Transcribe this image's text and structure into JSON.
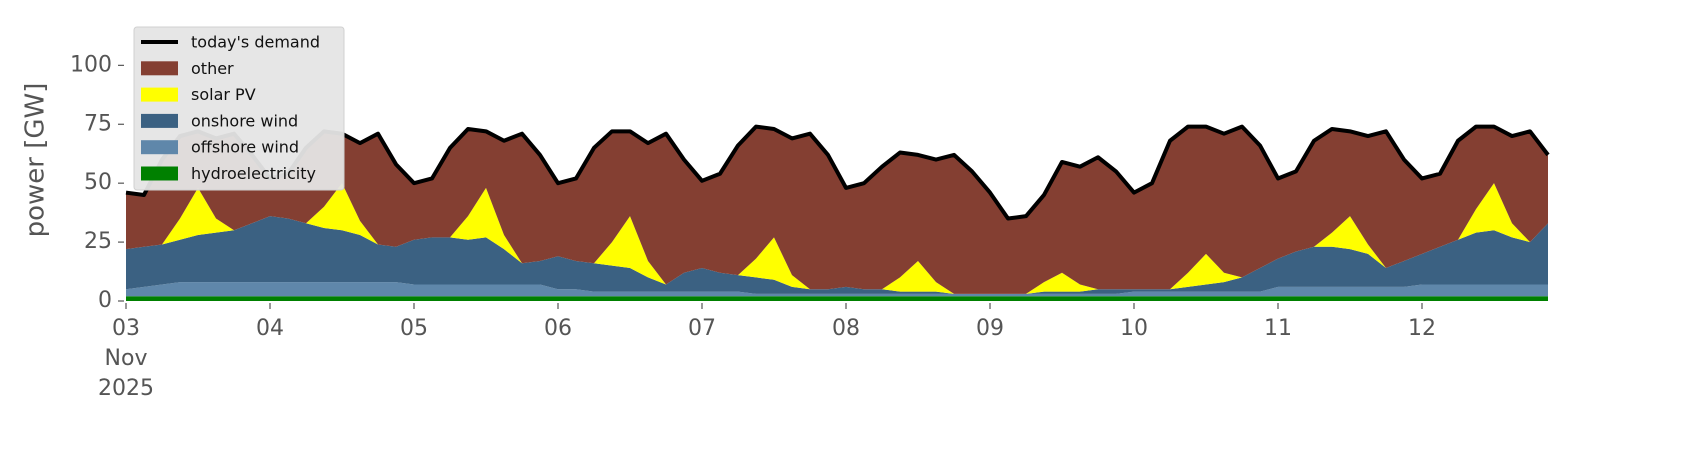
{
  "chart_data": {
    "type": "stacked_area",
    "y_label": "power [GW]",
    "x": [
      "2025-11-03T00:00",
      "2025-11-03T03:00",
      "2025-11-03T06:00",
      "2025-11-03T09:00",
      "2025-11-03T12:00",
      "2025-11-03T15:00",
      "2025-11-03T18:00",
      "2025-11-03T21:00",
      "2025-11-04T00:00",
      "2025-11-04T03:00",
      "2025-11-04T06:00",
      "2025-11-04T09:00",
      "2025-11-04T12:00",
      "2025-11-04T15:00",
      "2025-11-04T18:00",
      "2025-11-04T21:00",
      "2025-11-05T00:00",
      "2025-11-05T03:00",
      "2025-11-05T06:00",
      "2025-11-05T09:00",
      "2025-11-05T12:00",
      "2025-11-05T15:00",
      "2025-11-05T18:00",
      "2025-11-05T21:00",
      "2025-11-06T00:00",
      "2025-11-06T03:00",
      "2025-11-06T06:00",
      "2025-11-06T09:00",
      "2025-11-06T12:00",
      "2025-11-06T15:00",
      "2025-11-06T18:00",
      "2025-11-06T21:00",
      "2025-11-07T00:00",
      "2025-11-07T03:00",
      "2025-11-07T06:00",
      "2025-11-07T09:00",
      "2025-11-07T12:00",
      "2025-11-07T15:00",
      "2025-11-07T18:00",
      "2025-11-07T21:00",
      "2025-11-08T00:00",
      "2025-11-08T03:00",
      "2025-11-08T06:00",
      "2025-11-08T09:00",
      "2025-11-08T12:00",
      "2025-11-08T15:00",
      "2025-11-08T18:00",
      "2025-11-08T21:00",
      "2025-11-09T00:00",
      "2025-11-09T03:00",
      "2025-11-09T06:00",
      "2025-11-09T09:00",
      "2025-11-09T12:00",
      "2025-11-09T15:00",
      "2025-11-09T18:00",
      "2025-11-09T21:00",
      "2025-11-10T00:00",
      "2025-11-10T03:00",
      "2025-11-10T06:00",
      "2025-11-10T09:00",
      "2025-11-10T12:00",
      "2025-11-10T15:00",
      "2025-11-10T18:00",
      "2025-11-10T21:00",
      "2025-11-11T00:00",
      "2025-11-11T03:00",
      "2025-11-11T06:00",
      "2025-11-11T09:00",
      "2025-11-11T12:00",
      "2025-11-11T15:00",
      "2025-11-11T18:00",
      "2025-11-11T21:00",
      "2025-11-12T00:00",
      "2025-11-12T03:00",
      "2025-11-12T06:00",
      "2025-11-12T09:00",
      "2025-11-12T12:00",
      "2025-11-12T15:00",
      "2025-11-12T18:00",
      "2025-11-12T21:00"
    ],
    "series": [
      {
        "name": "today's demand",
        "type": "line",
        "color": "#000000",
        "values": [
          46,
          45,
          60,
          70,
          72,
          69,
          71,
          62,
          52,
          54,
          65,
          72,
          71,
          67,
          71,
          58,
          50,
          52,
          65,
          73,
          72,
          68,
          71,
          62,
          50,
          52,
          65,
          72,
          72,
          67,
          71,
          60,
          51,
          54,
          66,
          74,
          73,
          69,
          71,
          62,
          48,
          50,
          57,
          63,
          62,
          60,
          62,
          55,
          46,
          35,
          36,
          45,
          59,
          57,
          61,
          55,
          46,
          50,
          68,
          74,
          74,
          71,
          74,
          66,
          52,
          55,
          68,
          73,
          72,
          70,
          72,
          60,
          52,
          54,
          68,
          74,
          74,
          70,
          72,
          62
        ]
      },
      {
        "name": "other",
        "type": "area",
        "color": "#843f32",
        "values": [
          24,
          22,
          36,
          35,
          24,
          34,
          41,
          29,
          16,
          19,
          32,
          32,
          21,
          33,
          47,
          35,
          24,
          25,
          38,
          37,
          24,
          40,
          55,
          45,
          31,
          35,
          49,
          47,
          36,
          50,
          64,
          48,
          37,
          42,
          55,
          56,
          46,
          58,
          66,
          57,
          42,
          45,
          52,
          53,
          45,
          52,
          59,
          52,
          43,
          32,
          33,
          37,
          47,
          50,
          56,
          50,
          41,
          45,
          63,
          62,
          54,
          59,
          64,
          52,
          34,
          34,
          45,
          44,
          36,
          46,
          58,
          43,
          32,
          31,
          42,
          35,
          24,
          37,
          47,
          29
        ]
      },
      {
        "name": "solar PV",
        "type": "area",
        "color": "#ffff00",
        "values": [
          0,
          0,
          0,
          9,
          20,
          6,
          0,
          0,
          0,
          0,
          0,
          9,
          20,
          6,
          0,
          0,
          0,
          0,
          0,
          10,
          21,
          6,
          0,
          0,
          0,
          0,
          0,
          10,
          22,
          7,
          0,
          0,
          0,
          0,
          0,
          8,
          18,
          5,
          0,
          0,
          0,
          0,
          0,
          6,
          13,
          4,
          0,
          0,
          0,
          0,
          0,
          4,
          8,
          3,
          0,
          0,
          0,
          0,
          0,
          6,
          13,
          4,
          0,
          0,
          0,
          0,
          0,
          6,
          14,
          4,
          0,
          0,
          0,
          0,
          0,
          10,
          20,
          6,
          0,
          0
        ]
      },
      {
        "name": "onshore wind",
        "type": "area",
        "color": "#3b6182",
        "values": [
          17,
          17,
          17,
          18,
          20,
          21,
          22,
          25,
          28,
          27,
          25,
          23,
          22,
          20,
          16,
          15,
          19,
          20,
          20,
          19,
          20,
          15,
          9,
          10,
          14,
          12,
          12,
          11,
          10,
          6,
          3,
          8,
          10,
          8,
          7,
          7,
          6,
          3,
          2,
          2,
          3,
          2,
          2,
          1,
          1,
          1,
          0,
          0,
          0,
          0,
          0,
          1,
          1,
          1,
          2,
          2,
          1,
          1,
          1,
          2,
          3,
          4,
          6,
          10,
          12,
          15,
          17,
          17,
          16,
          14,
          8,
          11,
          13,
          16,
          19,
          22,
          23,
          20,
          18,
          26
        ]
      },
      {
        "name": "offshore wind",
        "type": "area",
        "color": "#5f87aa",
        "values": [
          3,
          4,
          5,
          6,
          6,
          6,
          6,
          6,
          6,
          6,
          6,
          6,
          6,
          6,
          6,
          6,
          5,
          5,
          5,
          5,
          5,
          5,
          5,
          5,
          3,
          3,
          2,
          2,
          2,
          2,
          2,
          2,
          2,
          2,
          2,
          1,
          1,
          1,
          1,
          1,
          1,
          1,
          1,
          1,
          1,
          1,
          1,
          1,
          1,
          1,
          1,
          1,
          1,
          1,
          1,
          1,
          2,
          2,
          2,
          2,
          2,
          2,
          2,
          2,
          4,
          4,
          4,
          4,
          4,
          4,
          4,
          4,
          5,
          5,
          5,
          5,
          5,
          5,
          5,
          5
        ]
      },
      {
        "name": "hydroelectricity",
        "type": "area",
        "color": "#008000",
        "values": [
          2,
          2,
          2,
          2,
          2,
          2,
          2,
          2,
          2,
          2,
          2,
          2,
          2,
          2,
          2,
          2,
          2,
          2,
          2,
          2,
          2,
          2,
          2,
          2,
          2,
          2,
          2,
          2,
          2,
          2,
          2,
          2,
          2,
          2,
          2,
          2,
          2,
          2,
          2,
          2,
          2,
          2,
          2,
          2,
          2,
          2,
          2,
          2,
          2,
          2,
          2,
          2,
          2,
          2,
          2,
          2,
          2,
          2,
          2,
          2,
          2,
          2,
          2,
          2,
          2,
          2,
          2,
          2,
          2,
          2,
          2,
          2,
          2,
          2,
          2,
          2,
          2,
          2,
          2,
          2
        ]
      }
    ],
    "xlim": [
      "2025-11-03T00:00",
      "2025-11-12T21:00"
    ],
    "xticks": [
      {
        "value": "2025-11-03",
        "label": "03\nNov\n2025"
      },
      {
        "value": "2025-11-04",
        "label": "04"
      },
      {
        "value": "2025-11-05",
        "label": "05"
      },
      {
        "value": "2025-11-06",
        "label": "06"
      },
      {
        "value": "2025-11-07",
        "label": "07"
      },
      {
        "value": "2025-11-08",
        "label": "08"
      },
      {
        "value": "2025-11-09",
        "label": "09"
      },
      {
        "value": "2025-11-10",
        "label": "10"
      },
      {
        "value": "2025-11-11",
        "label": "11"
      },
      {
        "value": "2025-11-12",
        "label": "12"
      }
    ],
    "ylim": [
      0,
      115
    ],
    "yticks": [
      0,
      25,
      50,
      75,
      100
    ],
    "legend": "upper left"
  }
}
